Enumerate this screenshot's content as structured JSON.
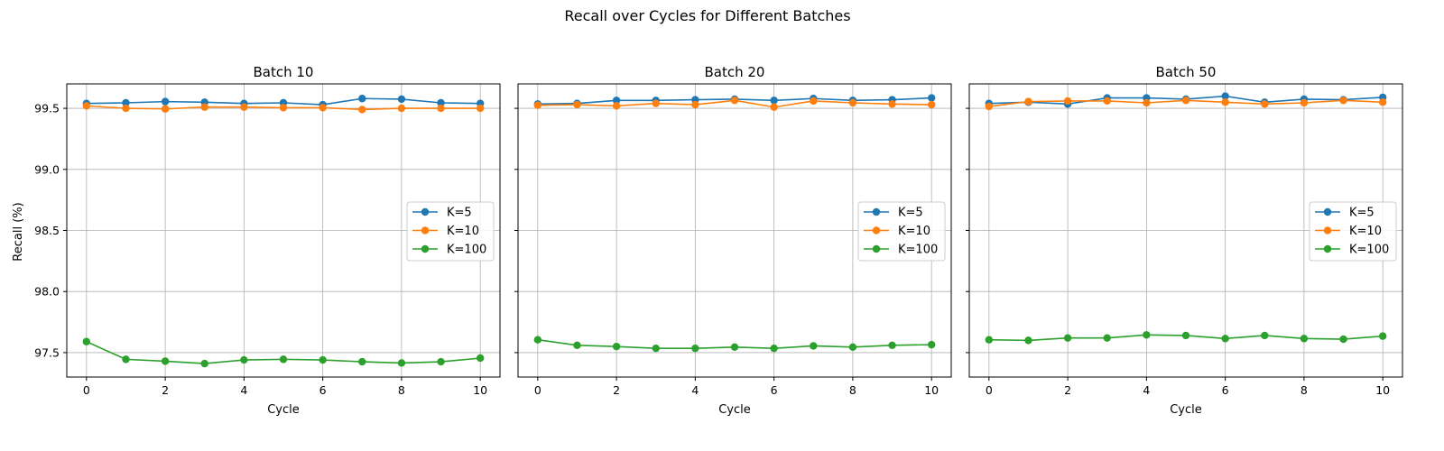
{
  "chart_data": {
    "type": "line",
    "suptitle": "Recall over Cycles for Different Batches",
    "xlabel": "Cycle",
    "ylabel": "Recall (%)",
    "xlim": [
      -0.5,
      10.5
    ],
    "ylim": [
      97.3,
      99.7
    ],
    "xticks": [
      "0",
      "2",
      "4",
      "6",
      "8",
      "10"
    ],
    "yticks": [
      "97.5",
      "98.0",
      "98.5",
      "99.0",
      "99.5"
    ],
    "grid": true,
    "shared_y": true,
    "legend_position": "center-right",
    "x": [
      0,
      1,
      2,
      3,
      4,
      5,
      6,
      7,
      8,
      9,
      10
    ],
    "colors": [
      "#1f77b4",
      "#ff7f0e",
      "#2ca02c"
    ],
    "panels": [
      {
        "title": "Batch 10",
        "series": [
          {
            "name": "K=5",
            "values": [
              99.54,
              99.545,
              99.555,
              99.55,
              99.54,
              99.545,
              99.53,
              99.58,
              99.575,
              99.545,
              99.54
            ]
          },
          {
            "name": "K=10",
            "values": [
              99.52,
              99.5,
              99.495,
              99.51,
              99.51,
              99.505,
              99.505,
              99.49,
              99.5,
              99.5,
              99.5
            ]
          },
          {
            "name": "K=100",
            "values": [
              97.59,
              97.445,
              97.43,
              97.41,
              97.44,
              97.445,
              97.44,
              97.425,
              97.415,
              97.425,
              97.455
            ]
          }
        ]
      },
      {
        "title": "Batch 20",
        "series": [
          {
            "name": "K=5",
            "values": [
              99.535,
              99.54,
              99.565,
              99.565,
              99.57,
              99.575,
              99.565,
              99.58,
              99.565,
              99.57,
              99.585
            ]
          },
          {
            "name": "K=10",
            "values": [
              99.525,
              99.53,
              99.52,
              99.54,
              99.53,
              99.565,
              99.51,
              99.56,
              99.545,
              99.535,
              99.53
            ]
          },
          {
            "name": "K=100",
            "values": [
              97.605,
              97.56,
              97.55,
              97.535,
              97.535,
              97.545,
              97.535,
              97.555,
              97.545,
              97.56,
              97.565
            ]
          }
        ]
      },
      {
        "title": "Batch 50",
        "series": [
          {
            "name": "K=5",
            "values": [
              99.54,
              99.55,
              99.535,
              99.585,
              99.585,
              99.575,
              99.6,
              99.55,
              99.575,
              99.57,
              99.59
            ]
          },
          {
            "name": "K=10",
            "values": [
              99.515,
              99.555,
              99.56,
              99.56,
              99.545,
              99.565,
              99.55,
              99.535,
              99.545,
              99.565,
              99.55
            ]
          },
          {
            "name": "K=100",
            "values": [
              97.605,
              97.6,
              97.62,
              97.62,
              97.645,
              97.64,
              97.615,
              97.64,
              97.615,
              97.61,
              97.635
            ]
          }
        ]
      }
    ]
  }
}
